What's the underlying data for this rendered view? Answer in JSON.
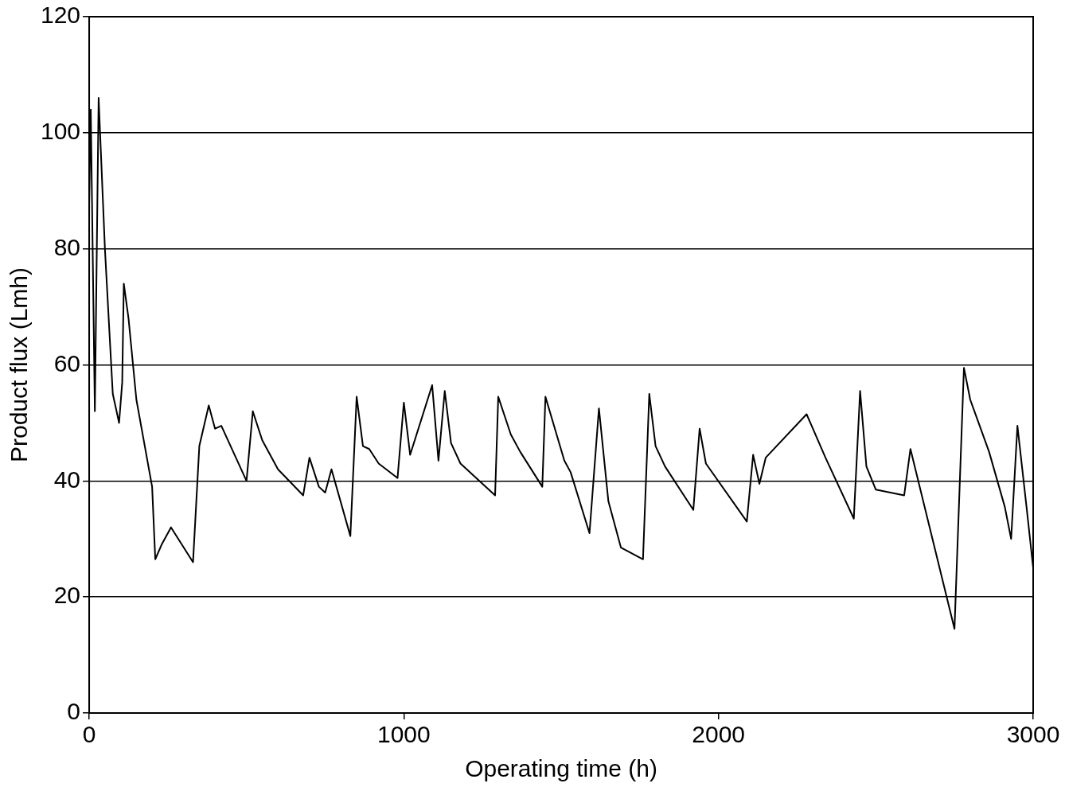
{
  "chart_data": {
    "type": "line",
    "xlabel": "Operating time (h)",
    "ylabel": "Product flux (Lmh)",
    "xlim": [
      0,
      3000
    ],
    "xticks": [
      0,
      1000,
      2000,
      3000
    ],
    "ylim": [
      0,
      120
    ],
    "yticks": [
      0,
      20,
      40,
      60,
      80,
      100,
      120
    ],
    "grid": "y",
    "marker": "none",
    "line_style": "solid",
    "x": [
      0,
      5,
      18,
      30,
      50,
      75,
      95,
      105,
      110,
      125,
      150,
      200,
      210,
      230,
      260,
      330,
      350,
      380,
      400,
      420,
      500,
      520,
      550,
      600,
      680,
      700,
      730,
      750,
      770,
      830,
      850,
      870,
      890,
      920,
      980,
      1000,
      1020,
      1090,
      1110,
      1130,
      1150,
      1180,
      1290,
      1300,
      1340,
      1370,
      1440,
      1450,
      1510,
      1530,
      1590,
      1620,
      1650,
      1690,
      1760,
      1780,
      1800,
      1830,
      1920,
      1940,
      1960,
      2090,
      2110,
      2130,
      2150,
      2280,
      2340,
      2430,
      2450,
      2470,
      2500,
      2590,
      2610,
      2750,
      2780,
      2800,
      2860,
      2910,
      2930,
      2950,
      2980,
      3000
    ],
    "series": [
      {
        "color": "#000000",
        "values": [
          88,
          104,
          52,
          106,
          80,
          55,
          50,
          57,
          74,
          68,
          54,
          39,
          26.5,
          29,
          32,
          26,
          46,
          53,
          49,
          49.5,
          40,
          52,
          47,
          42,
          37.5,
          44,
          39,
          38,
          42,
          30.5,
          54.5,
          46,
          45.5,
          43,
          40.5,
          53.5,
          44.5,
          56.5,
          43.5,
          55.5,
          46.5,
          43,
          37.5,
          54.5,
          48,
          45,
          39,
          54.5,
          43.5,
          41.5,
          31,
          52.5,
          36.5,
          28.5,
          26.5,
          55,
          46,
          42.5,
          35,
          49,
          43,
          33,
          44.5,
          39.5,
          44,
          51.5,
          44,
          33.5,
          55.5,
          42.5,
          38.5,
          37.5,
          45.5,
          14.5,
          59.5,
          54,
          45,
          35.5,
          30,
          49.5,
          35,
          25
        ]
      }
    ]
  }
}
